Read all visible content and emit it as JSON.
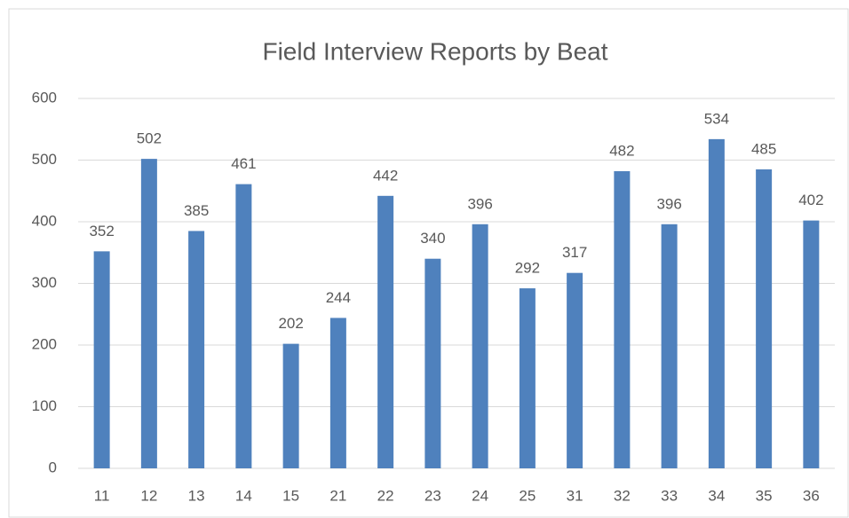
{
  "chart_data": {
    "type": "bar",
    "title": "Field Interview Reports by Beat",
    "categories": [
      "11",
      "12",
      "13",
      "14",
      "15",
      "21",
      "22",
      "23",
      "24",
      "25",
      "31",
      "32",
      "33",
      "34",
      "35",
      "36"
    ],
    "values": [
      352,
      502,
      385,
      461,
      202,
      244,
      442,
      340,
      396,
      292,
      317,
      482,
      396,
      534,
      485,
      402
    ],
    "color": "#4f81bd",
    "ylim": [
      0,
      600
    ],
    "yticks": [
      0,
      100,
      200,
      300,
      400,
      500,
      600
    ],
    "grid": true
  }
}
